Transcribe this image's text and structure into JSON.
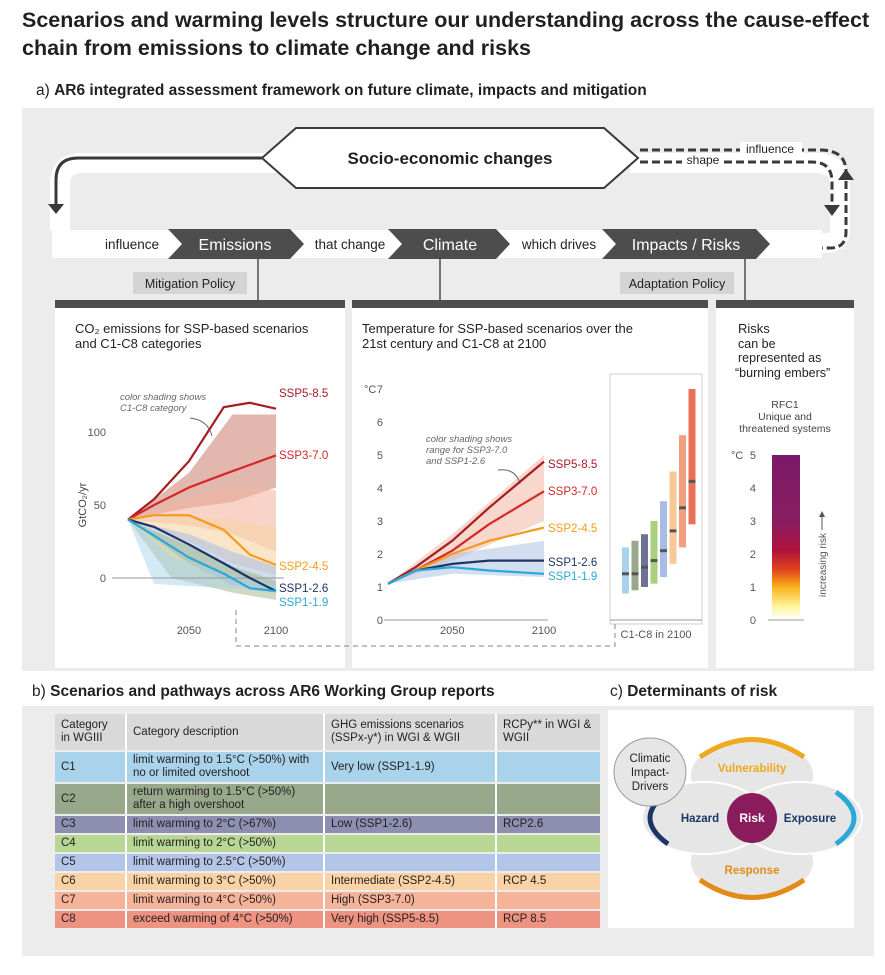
{
  "title": "Scenarios and warming levels structure our understanding across the cause-effect chain from emissions to climate change and risks",
  "section_a": {
    "prefix": "a)",
    "title": "AR6 integrated assessment framework on future climate, impacts and mitigation"
  },
  "framework": {
    "socio": "Socio-economic changes",
    "influence_left": "influence",
    "emissions": "Emissions",
    "that_change": "that change",
    "climate": "Climate",
    "which_drives": "which drives",
    "impacts": "Impacts / Risks",
    "influence_right": "influence",
    "shape": "shape",
    "mitigation_policy": "Mitigation Policy",
    "adaptation_policy": "Adaptation Policy"
  },
  "chart_data": [
    {
      "type": "line",
      "title_line1": "CO₂ emissions for SSP-based scenarios",
      "title_line2": "and C1-C8 categories",
      "ylabel": "GtCO₂/yr",
      "yticks": [
        "100",
        "50",
        "0"
      ],
      "xticks": [
        "2050",
        "2100"
      ],
      "ylim": [
        -15,
        120
      ],
      "xlim": [
        2015,
        2100
      ],
      "annotation": [
        "color shading shows",
        "C1-C8 category"
      ],
      "series": [
        {
          "name": "SSP5-8.5",
          "color": "#a61c24",
          "x": [
            2015,
            2030,
            2050,
            2070,
            2085,
            2100
          ],
          "y": [
            40,
            54,
            80,
            117,
            120,
            116
          ]
        },
        {
          "name": "SSP3-7.0",
          "color": "#d62728",
          "x": [
            2015,
            2030,
            2050,
            2070,
            2100
          ],
          "y": [
            40,
            50,
            62,
            71,
            84
          ]
        },
        {
          "name": "SSP2-4.5",
          "color": "#f49a1f",
          "x": [
            2015,
            2030,
            2050,
            2070,
            2085,
            2100
          ],
          "y": [
            40,
            43,
            43,
            33,
            16,
            9
          ]
        },
        {
          "name": "SSP1-2.6",
          "color": "#1c3664",
          "x": [
            2015,
            2030,
            2050,
            2070,
            2085,
            2100
          ],
          "y": [
            40,
            35,
            23,
            10,
            0,
            -9
          ]
        },
        {
          "name": "SSP1-1.9",
          "color": "#2aa8d8",
          "x": [
            2015,
            2030,
            2050,
            2070,
            2085,
            2100
          ],
          "y": [
            40,
            29,
            14,
            3,
            -7,
            -9
          ]
        }
      ]
    },
    {
      "type": "line",
      "title_line1": "Temperature for SSP-based scenarios over the",
      "title_line2": "21st century and C1-C8 at 2100",
      "ylabel": "°C",
      "yticks": [
        "7",
        "6",
        "5",
        "4",
        "3",
        "2",
        "1",
        "0"
      ],
      "xticks": [
        "2050",
        "2100"
      ],
      "ylim": [
        0,
        7
      ],
      "xlim": [
        2015,
        2100
      ],
      "annotation": [
        "color shading shows",
        "range for SSP3-7.0",
        "and SSP1-2.6"
      ],
      "inset_label": "C1-C8 in 2100",
      "series": [
        {
          "name": "SSP5-8.5",
          "color": "#a61c24",
          "x": [
            2015,
            2030,
            2050,
            2070,
            2100
          ],
          "y": [
            1.1,
            1.6,
            2.4,
            3.4,
            4.8
          ]
        },
        {
          "name": "SSP3-7.0",
          "color": "#d62728",
          "x": [
            2015,
            2030,
            2050,
            2070,
            2100
          ],
          "y": [
            1.1,
            1.5,
            2.1,
            2.9,
            3.9
          ]
        },
        {
          "name": "SSP2-4.5",
          "color": "#f49a1f",
          "x": [
            2015,
            2030,
            2050,
            2070,
            2100
          ],
          "y": [
            1.1,
            1.5,
            2.0,
            2.4,
            2.8
          ]
        },
        {
          "name": "SSP1-2.6",
          "color": "#1c3664",
          "x": [
            2015,
            2030,
            2050,
            2070,
            2100
          ],
          "y": [
            1.1,
            1.5,
            1.7,
            1.8,
            1.8
          ]
        },
        {
          "name": "SSP1-1.9",
          "color": "#2aa8d8",
          "x": [
            2015,
            2030,
            2050,
            2070,
            2100
          ],
          "y": [
            1.1,
            1.5,
            1.6,
            1.5,
            1.4
          ]
        }
      ],
      "categories": [
        {
          "name": "C1",
          "color": "#a8d3ea",
          "low": 0.8,
          "high": 2.2,
          "median": 1.4
        },
        {
          "name": "C2",
          "color": "#98a88a",
          "low": 0.9,
          "high": 2.4,
          "median": 1.4
        },
        {
          "name": "C3",
          "color": "#6f7393",
          "low": 1.0,
          "high": 2.6,
          "median": 1.6
        },
        {
          "name": "C4",
          "color": "#a9cf7f",
          "low": 1.1,
          "high": 3.0,
          "median": 1.8
        },
        {
          "name": "C5",
          "color": "#a7bde3",
          "low": 1.3,
          "high": 3.6,
          "median": 2.1
        },
        {
          "name": "C6",
          "color": "#f7c996",
          "low": 1.7,
          "high": 4.5,
          "median": 2.7
        },
        {
          "name": "C7",
          "color": "#f29f80",
          "low": 2.2,
          "high": 5.6,
          "median": 3.4
        },
        {
          "name": "C8",
          "color": "#e96f57",
          "low": 2.9,
          "high": 7.0,
          "median": 4.2
        }
      ]
    },
    {
      "type": "heatmap",
      "title_lines": [
        "Risks",
        "can be",
        "represented as",
        "“burning embers”"
      ],
      "ylabel": "°C",
      "yticks": [
        "5",
        "4",
        "3",
        "2",
        "1",
        "0"
      ],
      "ylim": [
        0,
        5
      ],
      "ember_title": [
        "RFC1",
        "Unique and",
        "threatened systems"
      ],
      "axis_note": "increasing risk"
    }
  ],
  "section_b": {
    "prefix": "b)",
    "title": "Scenarios and pathways across AR6 Working Group reports"
  },
  "table": {
    "headers": [
      "Category in WGIII",
      "Category description",
      "GHG emissions scenarios (SSPx-y*) in WGI & WGII",
      "RCPy** in WGI & WGII"
    ],
    "rows": [
      {
        "cat": "C1",
        "desc": "limit warming to 1.5°C (>50%) with no or limited overshoot",
        "ghg": "Very low (SSP1-1.9)",
        "rcp": "",
        "color": "#a8d3ea"
      },
      {
        "cat": "C2",
        "desc": "return warming to 1.5°C (>50%) after a high overshoot",
        "ghg": "",
        "rcp": "",
        "color": "#98a88a"
      },
      {
        "cat": "C3",
        "desc": "limit warming to 2°C (>67%)",
        "ghg": "Low (SSP1-2.6)",
        "rcp": "RCP2.6",
        "color": "#8e8fb0"
      },
      {
        "cat": "C4",
        "desc": "limit warming to 2°C (>50%)",
        "ghg": "",
        "rcp": "",
        "color": "#b8d795"
      },
      {
        "cat": "C5",
        "desc": "limit warming to 2.5°C (>50%)",
        "ghg": "",
        "rcp": "",
        "color": "#b4c6e7"
      },
      {
        "cat": "C6",
        "desc": "limit warming to 3°C (>50%)",
        "ghg": "Intermediate (SSP2-4.5)",
        "rcp": "RCP 4.5",
        "color": "#f9d3a5"
      },
      {
        "cat": "C7",
        "desc": "limit warming to 4°C (>50%)",
        "ghg": "High (SSP3-7.0)",
        "rcp": "",
        "color": "#f5b49a"
      },
      {
        "cat": "C8",
        "desc": "exceed warming of 4°C (>50%)",
        "ghg": "Very high (SSP5-8.5)",
        "rcp": "RCP 8.5",
        "color": "#ee9282"
      }
    ]
  },
  "section_c": {
    "prefix": "c)",
    "title": "Determinants of risk"
  },
  "risk_diagram": {
    "drivers": [
      "Climatic",
      "Impact-",
      "Drivers"
    ],
    "vulnerability": "Vulnerability",
    "hazard": "Hazard",
    "risk": "Risk",
    "exposure": "Exposure",
    "response": "Response",
    "colors": {
      "vulnerability": "#f0a81c",
      "hazard": "#1c3664",
      "risk": "#8a1c5e",
      "exposure": "#2aa8d8",
      "response": "#e48a1b"
    }
  }
}
